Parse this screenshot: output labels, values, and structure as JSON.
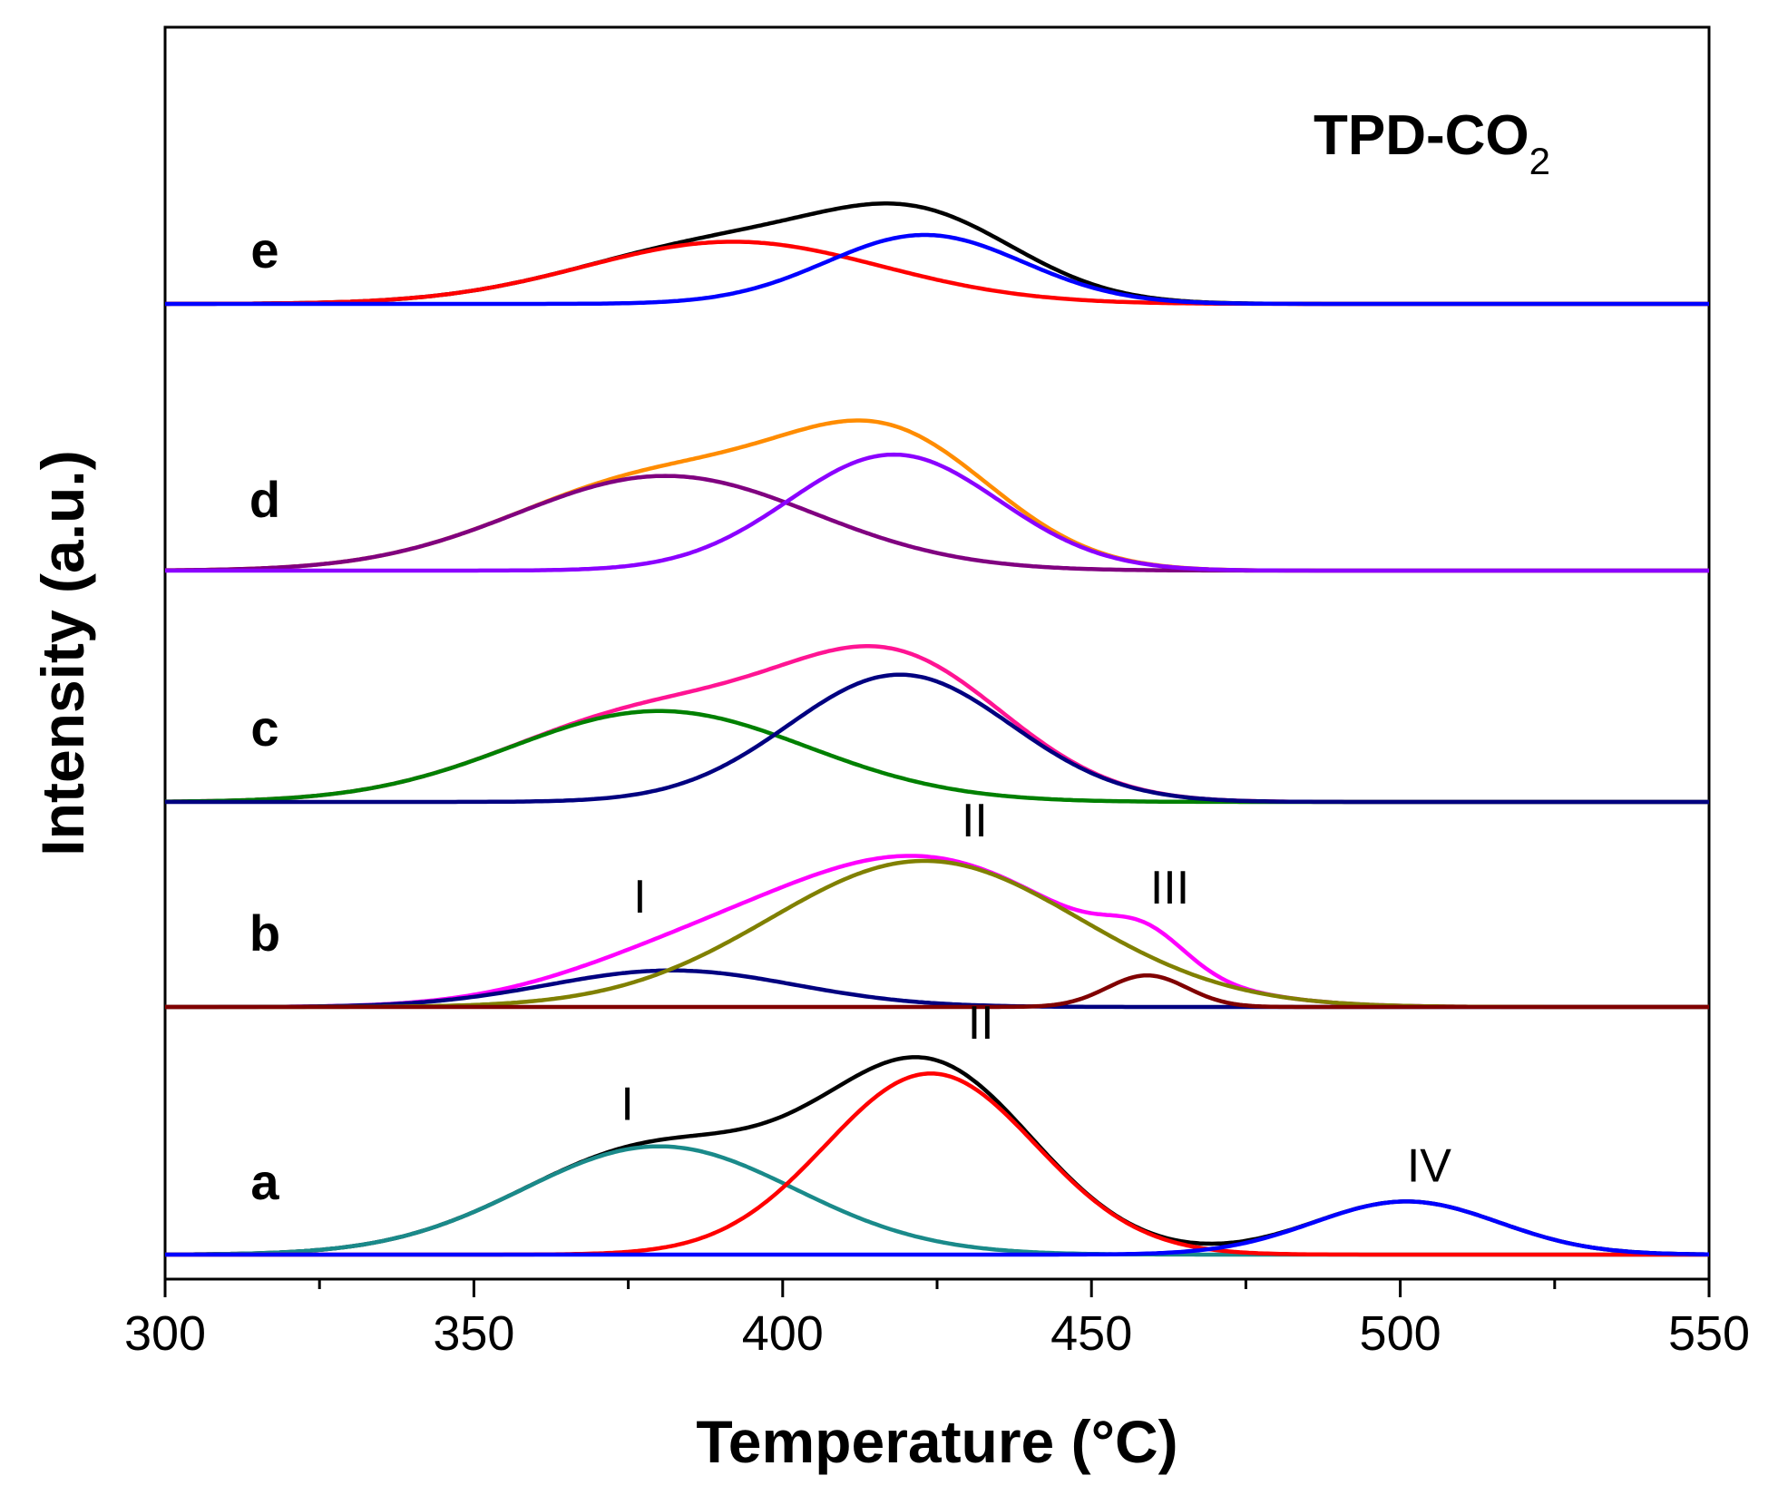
{
  "chart_data": {
    "type": "line",
    "title": "TPD-CO",
    "title_subscript": "2",
    "xlabel": "Temperature (°C)",
    "ylabel": "Intensity (a.u.)",
    "xlim": [
      300,
      550
    ],
    "x_ticks": [
      300,
      350,
      400,
      450,
      500,
      550
    ],
    "x_tick_labels": [
      "300",
      "350",
      "400",
      "450",
      "500",
      "550"
    ],
    "x_minor_ticks": [
      325,
      375,
      425,
      475,
      525
    ],
    "panels": [
      {
        "label": "a",
        "peaks": [
          {
            "name": "I",
            "label": "I",
            "center": 380,
            "sigma": 22,
            "amplitude": 0.55,
            "color": "#1a8a8a"
          },
          {
            "name": "II",
            "label": "II",
            "center": 424,
            "sigma": 17,
            "amplitude": 0.92,
            "color": "#ff0000"
          },
          {
            "name": "IV",
            "label": "IV",
            "center": 501,
            "sigma": 15,
            "amplitude": 0.27,
            "color": "#0000ff"
          }
        ],
        "envelope_color": "#000000"
      },
      {
        "label": "b",
        "peaks": [
          {
            "name": "I",
            "label": "I",
            "center": 382,
            "sigma": 20,
            "amplitude": 0.22,
            "color": "#000080"
          },
          {
            "name": "II",
            "label": "II",
            "center": 423,
            "sigma": 25,
            "amplitude": 0.88,
            "color": "#808000"
          },
          {
            "name": "III",
            "label": "III",
            "center": 459,
            "sigma": 6.5,
            "amplitude": 0.19,
            "color": "#800000"
          }
        ],
        "envelope_color": "#ff00ff"
      },
      {
        "label": "c",
        "peaks": [
          {
            "name": "low",
            "label": "",
            "center": 380,
            "sigma": 24,
            "amplitude": 0.6,
            "color": "#008000"
          },
          {
            "name": "high",
            "label": "",
            "center": 419,
            "sigma": 18,
            "amplitude": 0.84,
            "color": "#000080"
          }
        ],
        "envelope_color": "#ff1493"
      },
      {
        "label": "d",
        "peaks": [
          {
            "name": "low",
            "label": "",
            "center": 381,
            "sigma": 24,
            "amplitude": 0.71,
            "color": "#800080"
          },
          {
            "name": "high",
            "label": "",
            "center": 418,
            "sigma": 17,
            "amplitude": 0.87,
            "color": "#8b00ff"
          }
        ],
        "envelope_color": "#ff8c00"
      },
      {
        "label": "e",
        "peaks": [
          {
            "name": "low",
            "label": "",
            "center": 392,
            "sigma": 24,
            "amplitude": 0.46,
            "color": "#ff0000"
          },
          {
            "name": "high",
            "label": "",
            "center": 423,
            "sigma": 16,
            "amplitude": 0.51,
            "color": "#0000ff"
          }
        ],
        "envelope_color": "#000000"
      }
    ]
  }
}
